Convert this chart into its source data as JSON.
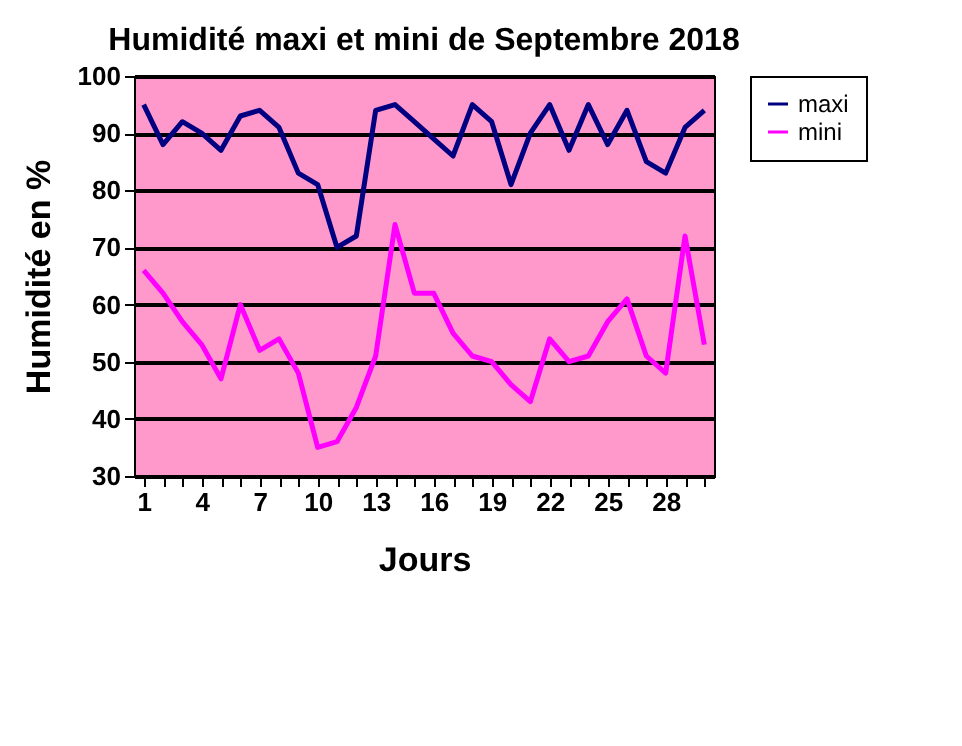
{
  "chart_data": {
    "type": "line",
    "title": "Humidité maxi et mini de Septembre 2018",
    "xlabel": "Jours",
    "ylabel": "Humidité en %",
    "categories": [
      "1",
      null,
      null,
      "4",
      null,
      null,
      "7",
      null,
      null,
      "10",
      null,
      null,
      "13",
      null,
      null,
      "16",
      null,
      null,
      "19",
      null,
      null,
      "22",
      null,
      null,
      "25",
      null,
      null,
      "28",
      null,
      null
    ],
    "series": [
      {
        "name": "maxi",
        "color": "#000080",
        "values": [
          95,
          88,
          92,
          90,
          87,
          93,
          94,
          91,
          83,
          81,
          70,
          72,
          94,
          95,
          92,
          89,
          86,
          95,
          92,
          81,
          90,
          95,
          87,
          95,
          88,
          94,
          85,
          83,
          91,
          94
        ]
      },
      {
        "name": "mini",
        "color": "#ff00ff",
        "values": [
          66,
          62,
          57,
          53,
          47,
          60,
          52,
          54,
          48,
          35,
          36,
          42,
          51,
          74,
          62,
          62,
          55,
          51,
          50,
          46,
          43,
          54,
          50,
          51,
          57,
          61,
          51,
          48,
          72,
          53
        ]
      }
    ],
    "ylim": [
      30,
      100
    ],
    "yticks": [
      30,
      40,
      50,
      60,
      70,
      80,
      90,
      100
    ],
    "grid": "y",
    "legend": "right",
    "marker": "none",
    "line_style": "solid"
  }
}
